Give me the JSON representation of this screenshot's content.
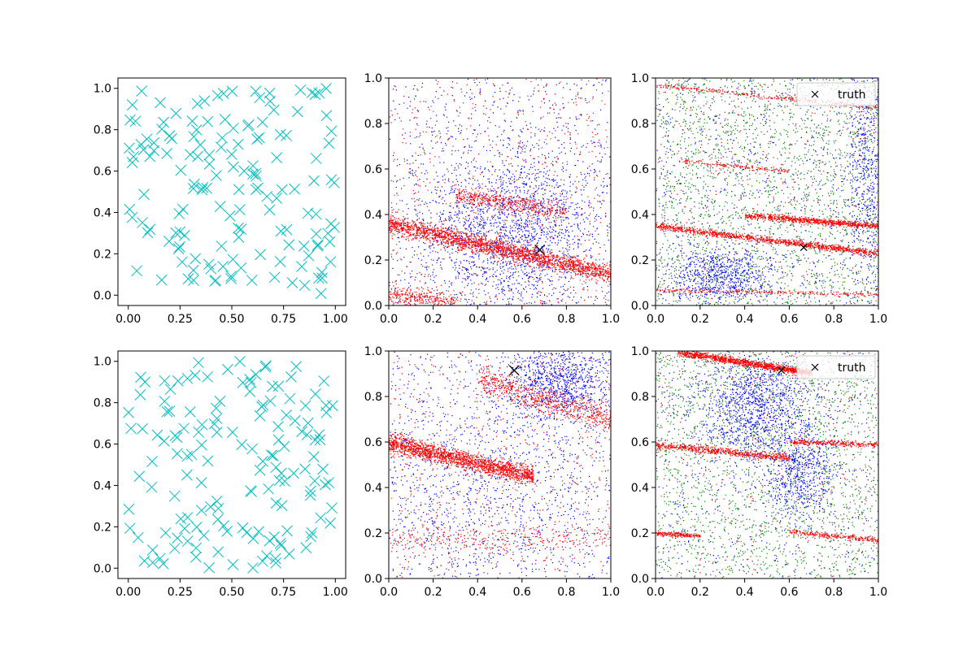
{
  "figure": {
    "layout": "2x3 grid",
    "background": "#ffffff"
  },
  "colors": {
    "uniform_marker": "#00bfbf",
    "red_points": "#ff0000",
    "blue_points": "#0000ff",
    "green_points": "#008000",
    "truth_marker": "#000000"
  },
  "chart_data": [
    {
      "type": "scatter",
      "panel": "top-left",
      "marker": "x",
      "color": "#00bfbf",
      "xlim": [
        -0.05,
        1.05
      ],
      "ylim": [
        -0.05,
        1.05
      ],
      "xticks": [
        "0.00",
        "0.25",
        "0.50",
        "0.75",
        "1.00"
      ],
      "yticks": [
        "0.0",
        "0.2",
        "0.4",
        "0.6",
        "0.8",
        "1.0"
      ],
      "n_points": 150,
      "distribution": "uniform random on [0,1]x[0,1]",
      "title": "",
      "xlabel": "",
      "ylabel": "",
      "grid": false
    },
    {
      "type": "scatter",
      "panel": "top-center",
      "xlim": [
        0,
        1
      ],
      "ylim": [
        0,
        1
      ],
      "xticks": [
        "0.0",
        "0.2",
        "0.4",
        "0.6",
        "0.8",
        "1.0"
      ],
      "yticks": [
        "0.0",
        "0.2",
        "0.4",
        "0.6",
        "0.8",
        "1.0"
      ],
      "series": [
        {
          "color": "#0000ff",
          "n_points": 2600,
          "description": "diffuse cloud centered near (0.55, 0.3)"
        },
        {
          "color": "#ff0000",
          "n_points": 3200,
          "description": "dense band from (0.0, 0.36) to (1.0, 0.15); fainter parallel bands"
        }
      ],
      "truth": {
        "x": 0.68,
        "y": 0.245
      },
      "grid": false
    },
    {
      "type": "scatter",
      "panel": "top-right",
      "xlim": [
        0,
        1
      ],
      "ylim": [
        0,
        1
      ],
      "xticks": [
        "0.0",
        "0.2",
        "0.4",
        "0.6",
        "0.8",
        "1.0"
      ],
      "yticks": [
        "0.0",
        "0.2",
        "0.4",
        "0.6",
        "0.8",
        "1.0"
      ],
      "series": [
        {
          "color": "#008000",
          "n_points": 2200,
          "description": "uniform-ish diffuse cloud"
        },
        {
          "color": "#0000ff",
          "n_points": 2200,
          "description": "clusters near (0.3, 0.15) and right edge"
        },
        {
          "color": "#ff0000",
          "n_points": 2600,
          "description": "dense bands y=0.35-0.10x and y=0.43-0.08x; thin bands near y=0.97 and y=0.07"
        }
      ],
      "truth": {
        "x": 0.665,
        "y": 0.255
      },
      "legend": {
        "entries": [
          "truth"
        ],
        "placement": "top-right"
      },
      "grid": false
    },
    {
      "type": "scatter",
      "panel": "bottom-left",
      "marker": "x",
      "color": "#00bfbf",
      "xlim": [
        -0.05,
        1.05
      ],
      "ylim": [
        -0.05,
        1.05
      ],
      "xticks": [
        "0.00",
        "0.25",
        "0.50",
        "0.75",
        "1.00"
      ],
      "yticks": [
        "0.0",
        "0.2",
        "0.4",
        "0.6",
        "0.8",
        "1.0"
      ],
      "n_points": 150,
      "distribution": "uniform random on [0,1]x[0,1]",
      "grid": false
    },
    {
      "type": "scatter",
      "panel": "bottom-center",
      "xlim": [
        0,
        1
      ],
      "ylim": [
        0,
        1
      ],
      "xticks": [
        "0.0",
        "0.2",
        "0.4",
        "0.6",
        "0.8",
        "1.0"
      ],
      "yticks": [
        "0.0",
        "0.2",
        "0.4",
        "0.6",
        "0.8",
        "1.0"
      ],
      "series": [
        {
          "color": "#0000ff",
          "n_points": 2600,
          "description": "diffuse cloud plus dense cluster near (0.75, 0.88)"
        },
        {
          "color": "#ff0000",
          "n_points": 3200,
          "description": "dense band from (0.0, 0.60) to (0.6, 0.46); band near top right"
        }
      ],
      "truth": {
        "x": 0.565,
        "y": 0.915
      },
      "grid": false
    },
    {
      "type": "scatter",
      "panel": "bottom-right",
      "xlim": [
        0,
        1
      ],
      "ylim": [
        0,
        1
      ],
      "xticks": [
        "0.0",
        "0.2",
        "0.4",
        "0.6",
        "0.8",
        "1.0"
      ],
      "yticks": [
        "0.0",
        "0.2",
        "0.4",
        "0.6",
        "0.8",
        "1.0"
      ],
      "series": [
        {
          "color": "#008000",
          "n_points": 2200,
          "description": "diffuse cloud"
        },
        {
          "color": "#0000ff",
          "n_points": 2200,
          "description": "cluster near (0.45, 0.75) extending down to (0.7, 0.4)"
        },
        {
          "color": "#ff0000",
          "n_points": 2600,
          "description": "dense band y=1.0-0.12x near top; band y=0.59 crossing; thin band near y=0.2"
        }
      ],
      "truth": {
        "x": 0.565,
        "y": 0.915
      },
      "legend": {
        "entries": [
          "truth"
        ],
        "placement": "top-right"
      },
      "grid": false
    }
  ]
}
